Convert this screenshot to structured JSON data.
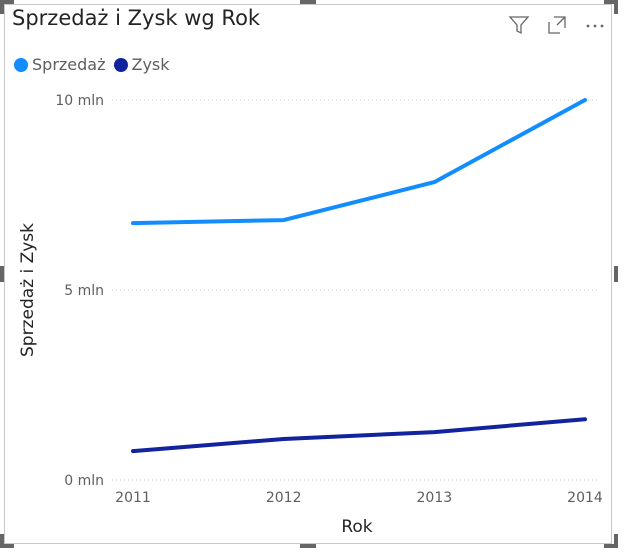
{
  "title": "Sprzedaż i Zysk wg Rok",
  "icons": [
    "filter-icon",
    "focus-mode-icon",
    "more-options-icon"
  ],
  "chart_data": {
    "type": "line",
    "title": "Sprzedaż i Zysk wg Rok",
    "xlabel": "Rok",
    "ylabel": "Sprzedaż i Zysk",
    "categories": [
      "2011",
      "2012",
      "2013",
      "2014"
    ],
    "ylim": [
      0,
      10
    ],
    "yticks": [
      {
        "v": 0,
        "label": "0 mln"
      },
      {
        "v": 5,
        "label": "5 mln"
      },
      {
        "v": 10,
        "label": "10 mln"
      }
    ],
    "legend_position": "top-left",
    "series": [
      {
        "name": "Sprzedaż",
        "color": "#118dff",
        "values": [
          6.76,
          6.84,
          7.84,
          10.0
        ]
      },
      {
        "name": "Zysk",
        "color": "#12239e",
        "values": [
          0.76,
          1.08,
          1.26,
          1.6
        ]
      }
    ]
  }
}
